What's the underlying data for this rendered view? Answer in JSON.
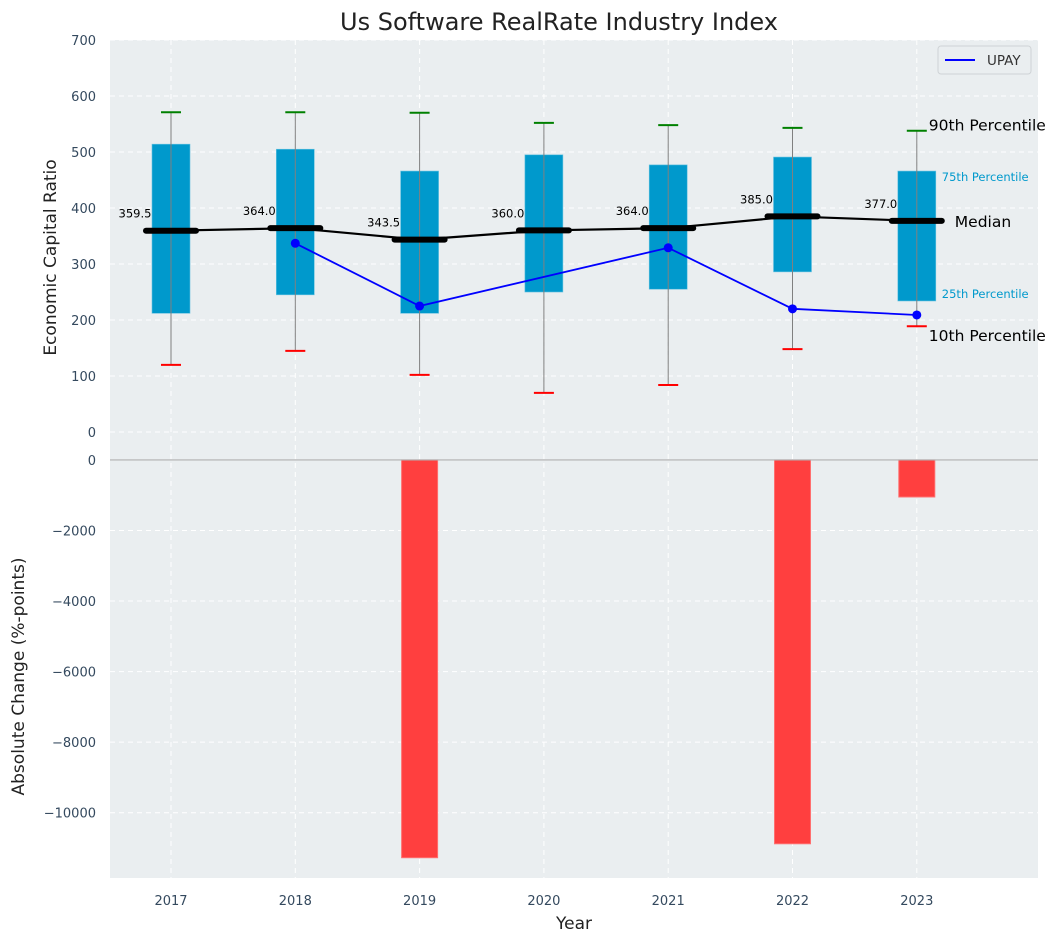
{
  "chart_data": [
    {
      "type": "box",
      "title": "Us Software RealRate Industry Index",
      "xlabel": "",
      "ylabel": "Economic Capital Ratio",
      "ylim": [
        -41,
        700
      ],
      "yticks": [
        0,
        100,
        200,
        300,
        400,
        500,
        600,
        700
      ],
      "grid": true,
      "categories": [
        "2017",
        "2018",
        "2019",
        "2020",
        "2021",
        "2022",
        "2023"
      ],
      "p90": [
        571,
        571,
        570,
        552,
        548,
        543,
        538
      ],
      "p75": [
        514,
        505,
        466,
        495,
        477,
        491,
        466
      ],
      "median": [
        359.5,
        364.0,
        343.5,
        360.0,
        364.0,
        385.0,
        377.0
      ],
      "median_labels": [
        "359.5",
        "364.0",
        "343.5",
        "360.0",
        "364.0",
        "385.0",
        "377.0"
      ],
      "p25": [
        212,
        245,
        212,
        250,
        255,
        286,
        234
      ],
      "p10": [
        120,
        145,
        102,
        70,
        84,
        148,
        189
      ],
      "series": [
        {
          "name": "UPAY",
          "color": "#0000ff",
          "values": [
            null,
            337,
            225,
            null,
            329,
            220,
            209
          ]
        }
      ],
      "legend": {
        "position": "top-right",
        "entries": [
          "UPAY"
        ]
      },
      "annotations": {
        "p90": "90th Percentile",
        "p75": "75th Percentile",
        "median": "Median",
        "p25": "25th Percentile",
        "p10": "10th Percentile"
      },
      "colors": {
        "box": "#0099cc",
        "p90_cap": "#008000",
        "p10_cap": "#ff0000",
        "median": "#000000",
        "whisker": "#808080",
        "background": "#eaeef0"
      }
    },
    {
      "type": "bar",
      "xlabel": "Year",
      "ylabel": "Absolute Change (%-points)",
      "ylim": [
        -11850,
        140
      ],
      "yticks": [
        0,
        -2000,
        -4000,
        -6000,
        -8000,
        -10000
      ],
      "ytick_labels": [
        "0",
        "−2000",
        "−4000",
        "−6000",
        "−8000",
        "−10000"
      ],
      "grid": true,
      "categories": [
        "2017",
        "2018",
        "2019",
        "2020",
        "2021",
        "2022",
        "2023"
      ],
      "values": [
        0,
        0,
        -11275,
        0,
        0,
        -10880,
        -1050
      ],
      "colors": {
        "bar": "#ff3f3f",
        "background": "#eaeef0"
      }
    }
  ]
}
